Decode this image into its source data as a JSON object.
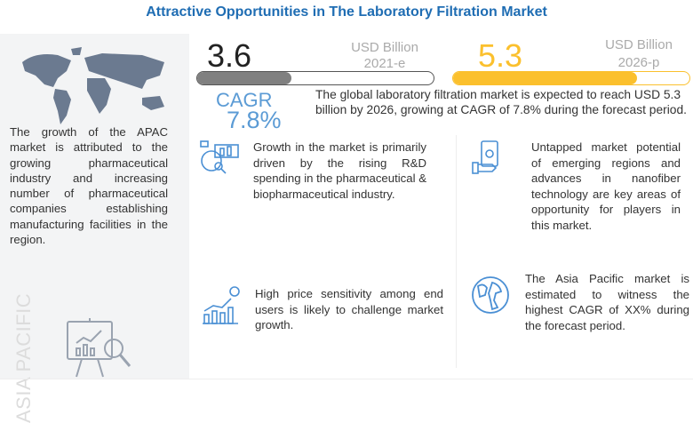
{
  "title": "Attractive Opportunities in The Laboratory Filtration Market",
  "left": {
    "text": "The growth of the APAC market is attributed to the growing pharmaceutical industry and increasing number of pharmaceutical companies establishing manufacturing facilities in the region.",
    "vertical_label": "ASIA PACIFIC"
  },
  "stats": {
    "start": {
      "value": "3.6",
      "unit": "USD Billion",
      "year": "2021-e",
      "fill_percent": 40,
      "color": "#808080"
    },
    "end": {
      "value": "5.3",
      "unit": "USD Billion",
      "year": "2026-p",
      "fill_percent": 78,
      "color": "#fbc02d"
    },
    "cagr_label": "CAGR",
    "cagr_value": "7.8%",
    "summary": "The global laboratory filtration market is expected to reach USD 5.3 billion by 2026, growing at CAGR of 7.8% during the forecast period."
  },
  "cards": [
    {
      "icon": "analytics-icon",
      "text": "Growth in the market is primarily driven by the rising R&D spending in the pharmaceutical & biopharmaceutical industry."
    },
    {
      "icon": "money-hand-icon",
      "text": "Untapped market potential of emerging regions and advances in nanofiber technology are key areas of opportunity for players in this market."
    },
    {
      "icon": "growth-chart-icon",
      "text": "High price sensitivity among end users is likely to challenge market growth."
    },
    {
      "icon": "globe-icon",
      "text": "The Asia Pacific market is estimated to witness the highest CAGR of XX% during the forecast period."
    }
  ],
  "colors": {
    "title": "#1f6db3",
    "accent_blue": "#5b9bd5",
    "yellow": "#fbc02d"
  }
}
